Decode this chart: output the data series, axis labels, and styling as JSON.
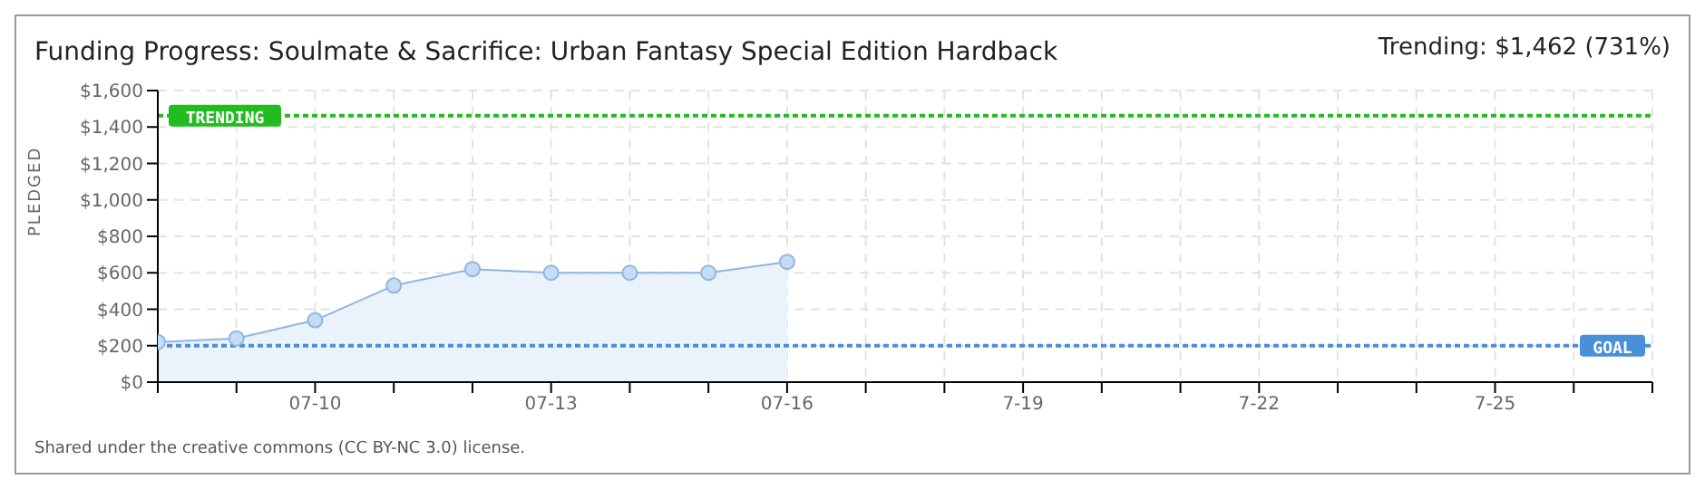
{
  "chart_data": {
    "type": "area",
    "title": "Funding Progress: Soulmate & Sacrifice: Urban Fantasy Special Edition Hardback",
    "ylabel": "PLEDGED",
    "annotations": [
      "Trending: $1,462 (731%)",
      "Shared under the creative commons (CC BY-NC 3.0) license."
    ],
    "x": [
      "--07-08",
      "--07-09",
      "--07-10",
      "--07-11",
      "--07-12",
      "--07-13",
      "--07-14",
      "--07-15",
      "--07-16"
    ],
    "series": [
      {
        "color": "#8fb6e0",
        "values": [
          220,
          240,
          340,
          530,
          620,
          600,
          600,
          600,
          660
        ]
      }
    ],
    "xlim": [
      "--07-08",
      "--07-27"
    ],
    "xticks": [
      {
        "value": "--07-08",
        "label": null
      },
      {
        "value": "--07-09",
        "label": null
      },
      {
        "value": "--07-10",
        "label": "07-10"
      },
      {
        "value": "--07-11",
        "label": null
      },
      {
        "value": "--07-12",
        "label": null
      },
      {
        "value": "--07-13",
        "label": "07-13"
      },
      {
        "value": "--07-14",
        "label": null
      },
      {
        "value": "--07-15",
        "label": null
      },
      {
        "value": "--07-16",
        "label": "07-16"
      },
      {
        "value": "--07-17",
        "label": null
      },
      {
        "value": "--07-18",
        "label": null
      },
      {
        "value": "--07-19",
        "label": "7-19"
      },
      {
        "value": "--07-20",
        "label": null
      },
      {
        "value": "--07-21",
        "label": null
      },
      {
        "value": "--07-22",
        "label": "7-22"
      },
      {
        "value": "--07-23",
        "label": null
      },
      {
        "value": "--07-24",
        "label": null
      },
      {
        "value": "--07-25",
        "label": "7-25"
      },
      {
        "value": "--07-26",
        "label": null
      },
      {
        "value": "--07-27",
        "label": null
      }
    ],
    "ylim": [
      0,
      1600
    ],
    "yticks": [
      {
        "value": 0,
        "label": "$0"
      },
      {
        "value": 200,
        "label": "$200"
      },
      {
        "value": 400,
        "label": "$400"
      },
      {
        "value": 600,
        "label": "$600"
      },
      {
        "value": 800,
        "label": "$800"
      },
      {
        "value": 1000,
        "label": "$1,000"
      },
      {
        "value": 1200,
        "label": "$1,200"
      },
      {
        "value": 1400,
        "label": "$1,400"
      },
      {
        "value": 1600,
        "label": "$1,600"
      }
    ],
    "ref_lines": [
      {
        "axis": "y",
        "value": 1462,
        "label": "TRENDING",
        "color": "#22bb22",
        "line_style": "dotted"
      },
      {
        "axis": "y",
        "value": 200,
        "label": "GOAL",
        "color": "#4a8fd9",
        "line_style": "dotted"
      }
    ],
    "grid": true,
    "marker": "circle",
    "legend": false
  }
}
